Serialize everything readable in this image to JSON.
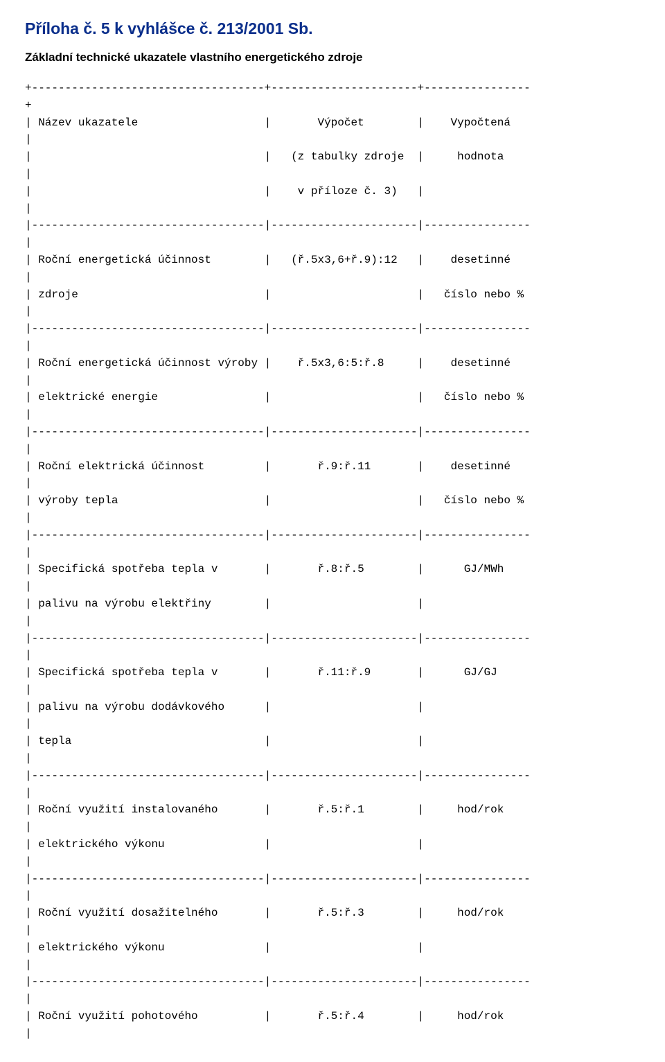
{
  "title": "Příloha č. 5 k vyhlášce č. 213/2001 Sb.",
  "subtitle": "Základní technické ukazatele vlastního energetického zdroje",
  "ascii": {
    "hr_top": "+-----------------------------------+----------------------+----------------",
    "hr_top2": "+",
    "hr_sep": "|-----------------------------------|----------------------|----------------",
    "pipe": "|",
    "header": {
      "l1": "| Název ukazatele                   |       Výpočet        |    Vypočtená",
      "l2": "|                                   |   (z tabulky zdroje  |     hodnota",
      "l3": "|                                   |    v příloze č. 3)   |"
    },
    "r1": {
      "a": "| Roční energetická účinnost        |   (ř.5x3,6+ř.9):12   |    desetinné",
      "b": "| zdroje                            |                      |   číslo nebo %"
    },
    "r2": {
      "a": "| Roční energetická účinnost výroby |    ř.5x3,6:5:ř.8     |    desetinné",
      "b": "| elektrické energie                |                      |   číslo nebo %"
    },
    "r3": {
      "a": "| Roční elektrická účinnost         |       ř.9:ř.11       |    desetinné",
      "b": "| výroby tepla                      |                      |   číslo nebo %"
    },
    "r4": {
      "a": "| Specifická spotřeba tepla v       |       ř.8:ř.5        |      GJ/MWh",
      "b": "| palivu na výrobu elektřiny        |                      |"
    },
    "r5": {
      "a": "| Specifická spotřeba tepla v       |       ř.11:ř.9       |      GJ/GJ",
      "b": "| palivu na výrobu dodávkového      |                      |",
      "c": "| tepla                             |                      |"
    },
    "r6": {
      "a": "| Roční využití instalovaného       |       ř.5:ř.1        |     hod/rok",
      "b": "| elektrického výkonu               |                      |"
    },
    "r7": {
      "a": "| Roční využití dosažitelného       |       ř.5:ř.3        |     hod/rok",
      "b": "| elektrického výkonu               |                      |"
    },
    "r8": {
      "a": "| Roční využití pohotového          |       ř.5:ř.4        |     hod/rok"
    }
  }
}
